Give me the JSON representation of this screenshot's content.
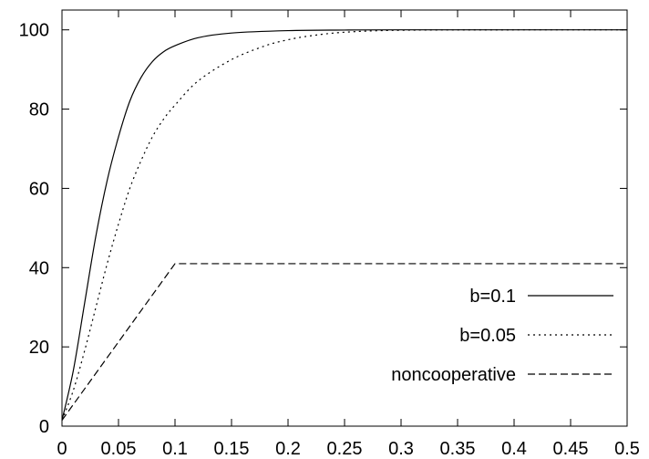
{
  "chart_data": {
    "type": "line",
    "title": "",
    "xlabel": "",
    "ylabel": "",
    "xlim": [
      0,
      0.5
    ],
    "ylim": [
      0,
      105
    ],
    "x_ticks": [
      "0",
      "0.05",
      "0.1",
      "0.15",
      "0.2",
      "0.25",
      "0.3",
      "0.35",
      "0.4",
      "0.45",
      "0.5"
    ],
    "y_ticks": [
      "0",
      "20",
      "40",
      "60",
      "80",
      "100"
    ],
    "grid": false,
    "legend_position": "right",
    "series": [
      {
        "name": "b=0.1",
        "line_style": "solid",
        "color": "#000000",
        "x": [
          0,
          0.01,
          0.02,
          0.03,
          0.04,
          0.05,
          0.06,
          0.07,
          0.08,
          0.09,
          0.1,
          0.12,
          0.15,
          0.2,
          0.25,
          0.3,
          0.4,
          0.5
        ],
        "y": [
          1.5,
          14,
          31,
          48,
          62,
          73,
          82,
          88,
          92,
          94.5,
          96,
          98,
          99.2,
          99.8,
          99.95,
          100,
          100,
          100
        ]
      },
      {
        "name": "b=0.05",
        "line_style": "dotted",
        "color": "#000000",
        "x": [
          0,
          0.01,
          0.02,
          0.03,
          0.04,
          0.05,
          0.06,
          0.07,
          0.08,
          0.09,
          0.1,
          0.12,
          0.15,
          0.18,
          0.2,
          0.22,
          0.25,
          0.3,
          0.4,
          0.5
        ],
        "y": [
          1.5,
          9,
          19,
          30,
          41,
          51,
          60,
          67,
          73,
          77.5,
          81,
          87,
          92.5,
          96,
          97.5,
          98.5,
          99.4,
          99.9,
          100,
          100
        ]
      },
      {
        "name": "noncooperative",
        "line_style": "dashed",
        "color": "#000000",
        "x": [
          0,
          0.1,
          0.5
        ],
        "y": [
          1.5,
          41,
          41
        ]
      }
    ]
  }
}
